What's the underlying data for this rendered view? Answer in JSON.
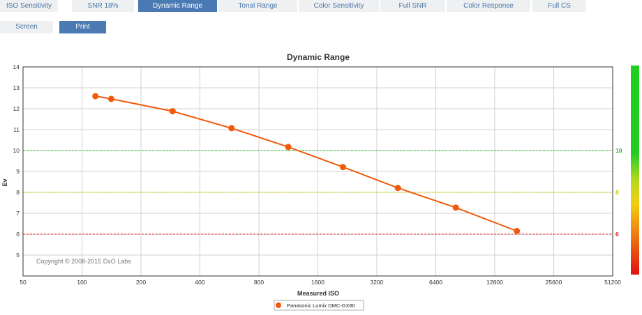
{
  "tabs": [
    {
      "label": "ISO Sensitivity",
      "active": false
    },
    {
      "label": "SNR 18%",
      "active": false
    },
    {
      "label": "Dynamic Range",
      "active": true
    },
    {
      "label": "Tonal Range",
      "active": false
    },
    {
      "label": "Color Sensitivity",
      "active": false
    },
    {
      "label": "Full SNR",
      "active": false
    },
    {
      "label": "Color Response",
      "active": false
    },
    {
      "label": "Full CS",
      "active": false
    }
  ],
  "modes": [
    {
      "label": "Screen",
      "active": false
    },
    {
      "label": "Print",
      "active": true
    }
  ],
  "colors": {
    "accent": "#4b79b3",
    "series": "#f05a0a",
    "ref_10": "#1fbf1f",
    "ref_8": "#c8c800",
    "ref_6": "#e02020"
  },
  "chart_data": {
    "type": "line",
    "title": "Dynamic Range",
    "xlabel": "Measured ISO",
    "ylabel": "Ev",
    "x_scale": "log2",
    "xlim": [
      50,
      51200
    ],
    "ylim": [
      4,
      14
    ],
    "x_ticks": [
      "50",
      "100",
      "200",
      "400",
      "800",
      "1600",
      "3200",
      "6400",
      "12800",
      "25600",
      "51200"
    ],
    "y_ticks": [
      "5",
      "6",
      "7",
      "8",
      "9",
      "10",
      "11",
      "12",
      "13",
      "14"
    ],
    "grid": true,
    "reference_lines": [
      {
        "value": 10,
        "label": "10",
        "color": "#1fbf1f"
      },
      {
        "value": 8,
        "label": "8",
        "color": "#c8c800"
      },
      {
        "value": 6,
        "label": "6",
        "color": "#e02020"
      }
    ],
    "series": [
      {
        "name": "Panasonic Lumix DMC-GX80",
        "x": [
          117,
          141,
          290,
          580,
          1130,
          2150,
          4100,
          8100,
          16600
        ],
        "y": [
          12.6,
          12.47,
          11.88,
          11.07,
          10.17,
          9.21,
          8.21,
          7.27,
          6.15
        ]
      }
    ],
    "legend_position": "bottom-center",
    "annotation": "Copyright © 2008-2015 DxO Labs"
  }
}
